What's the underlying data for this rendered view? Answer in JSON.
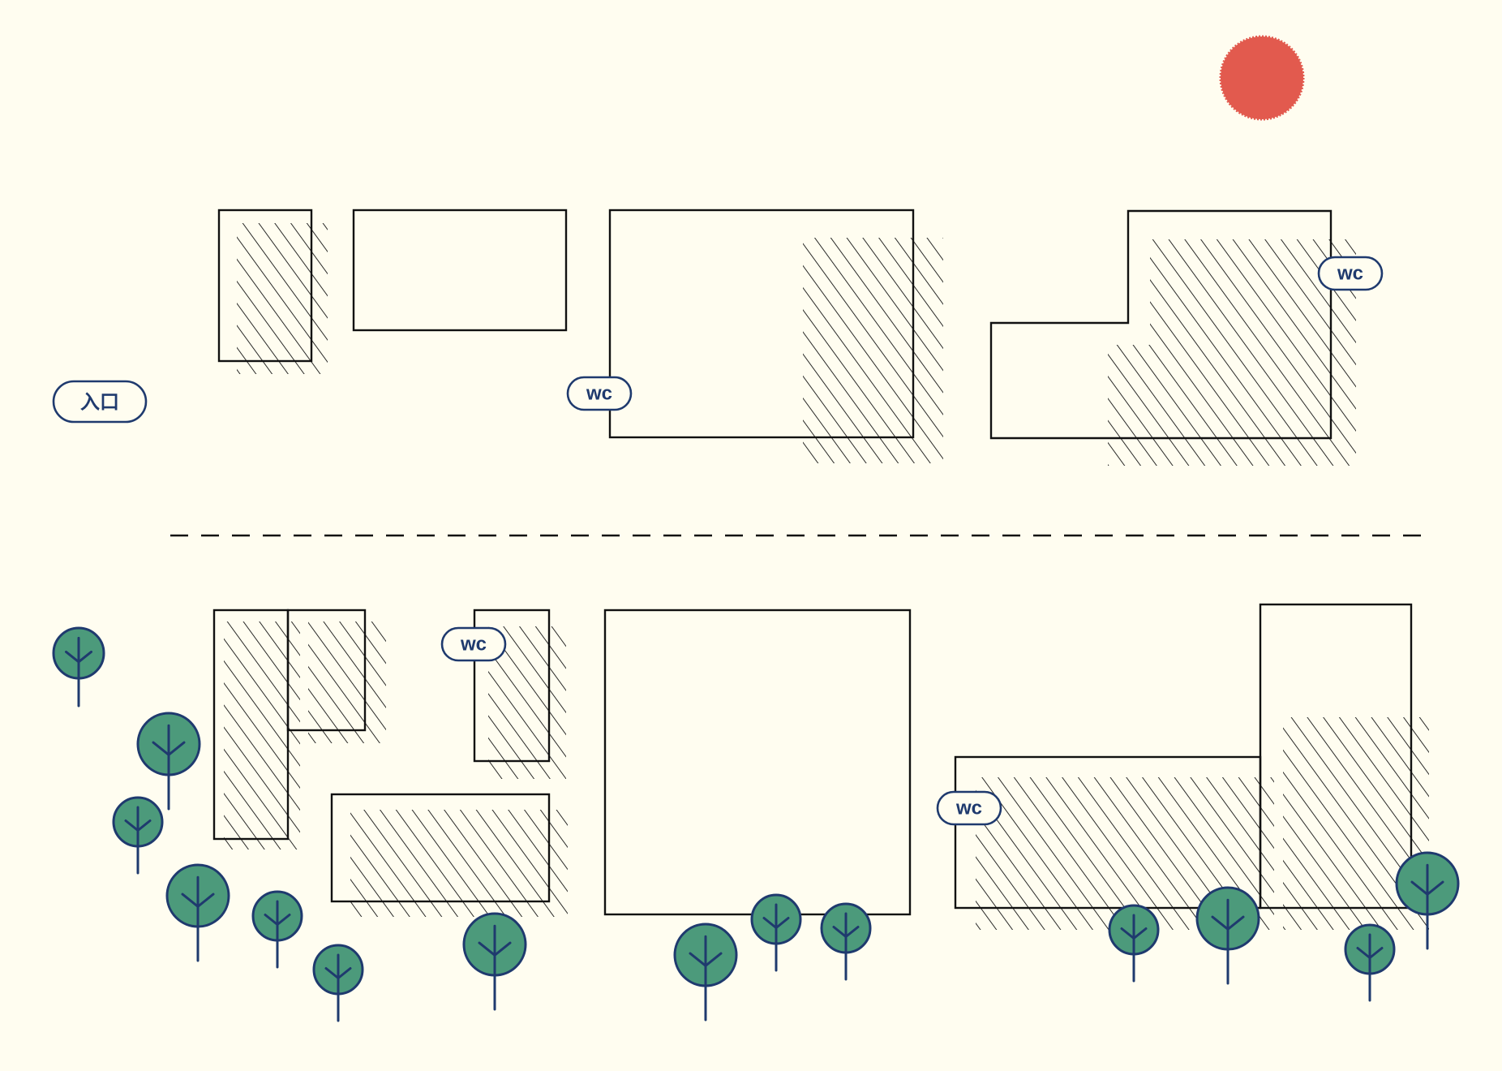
{
  "colors": {
    "background": "#fffdf0",
    "outline": "#111111",
    "badge": "#1f3a6e",
    "tree_fill": "#4c9a7b",
    "sun": "#e25a4e"
  },
  "labels": {
    "entrance": "入口",
    "wc": "wc"
  },
  "icons": {
    "sun": "sun-icon",
    "tree": "tree-icon",
    "toilet": "wc-badge"
  }
}
